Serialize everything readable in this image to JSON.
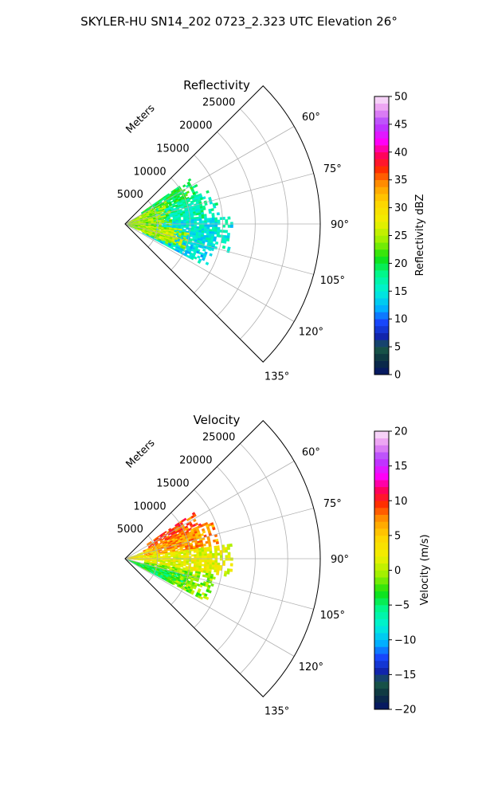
{
  "figure": {
    "title": "SKYLER-HU  SN14_202  0723_2.323 UTC Elevation 26°"
  },
  "chart_data": [
    {
      "type": "heatmap",
      "subtype": "polar-sector-ppi",
      "title": "Reflectivity",
      "range_label": "Meters",
      "range_ticks": [
        5000,
        10000,
        15000,
        20000,
        25000
      ],
      "range_tick_labels": [
        "5000",
        "10000",
        "15000",
        "20000",
        "25000"
      ],
      "rmax": 30000,
      "angle_ticks_deg": [
        60,
        75,
        90,
        105,
        120,
        135
      ],
      "angle_tick_labels": [
        "60°",
        "75°",
        "90°",
        "105°",
        "120°",
        "135°"
      ],
      "theta_range_deg": [
        45,
        135
      ],
      "grid": true,
      "colorbar": {
        "label": "Reflectivity dBZ",
        "vmin": 0,
        "vmax": 50,
        "ticks": [
          0,
          5,
          10,
          15,
          20,
          25,
          30,
          35,
          40,
          45,
          50
        ],
        "tick_labels": [
          "0",
          "5",
          "10",
          "15",
          "20",
          "25",
          "30",
          "35",
          "40",
          "45",
          "50"
        ]
      },
      "field_regions": [
        {
          "az": [
            55,
            68
          ],
          "r": [
            3000,
            12500
          ],
          "value": 20
        },
        {
          "az": [
            68,
            86
          ],
          "r": [
            3000,
            14500
          ],
          "value": 17
        },
        {
          "az": [
            86,
            106
          ],
          "r": [
            3000,
            16500
          ],
          "value": 15
        },
        {
          "az": [
            106,
            118
          ],
          "r": [
            3000,
            14000
          ],
          "value": 14
        },
        {
          "az": [
            60,
            115
          ],
          "r": [
            0,
            7000
          ],
          "value": 24
        },
        {
          "az": [
            95,
            113
          ],
          "r": [
            2000,
            10000
          ],
          "value": 25
        }
      ]
    },
    {
      "type": "heatmap",
      "subtype": "polar-sector-ppi",
      "title": "Velocity",
      "range_label": "Meters",
      "range_ticks": [
        5000,
        10000,
        15000,
        20000,
        25000
      ],
      "range_tick_labels": [
        "5000",
        "10000",
        "15000",
        "20000",
        "25000"
      ],
      "rmax": 30000,
      "angle_ticks_deg": [
        60,
        75,
        90,
        105,
        120,
        135
      ],
      "angle_tick_labels": [
        "60°",
        "75°",
        "90°",
        "105°",
        "120°",
        "135°"
      ],
      "theta_range_deg": [
        45,
        135
      ],
      "grid": true,
      "colorbar": {
        "label": "Velocity (m/s)",
        "vmin": -20,
        "vmax": 20,
        "ticks": [
          -20,
          -15,
          -10,
          -5,
          0,
          5,
          10,
          15,
          20
        ],
        "tick_labels": [
          "−20",
          "−15",
          "−10",
          "−5",
          "0",
          "5",
          "10",
          "15",
          "20"
        ]
      },
      "field_regions": [
        {
          "az": [
            56,
            66
          ],
          "r": [
            4000,
            12500
          ],
          "value": 9
        },
        {
          "az": [
            66,
            82
          ],
          "r": [
            3000,
            14500
          ],
          "value": 7
        },
        {
          "az": [
            82,
            100
          ],
          "r": [
            3000,
            16500
          ],
          "value": 2
        },
        {
          "az": [
            100,
            118
          ],
          "r": [
            3000,
            14000
          ],
          "value": -1
        },
        {
          "az": [
            105,
            118
          ],
          "r": [
            0,
            10000
          ],
          "value": -4
        },
        {
          "az": [
            70,
            95
          ],
          "r": [
            0,
            5000
          ],
          "value": 3
        }
      ]
    }
  ]
}
